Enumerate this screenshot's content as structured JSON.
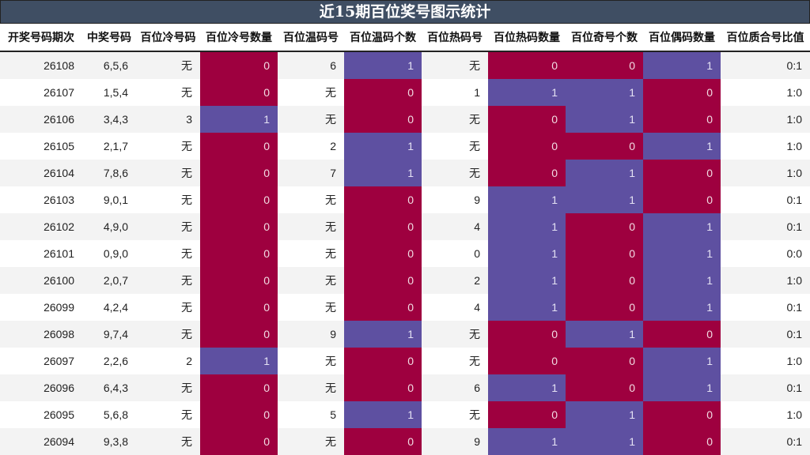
{
  "title": "近15期百位奖号图示统计",
  "colors": {
    "zero": "#9e003f",
    "one": "#5e50a1",
    "header": "#3f4e63"
  },
  "columns": [
    "开奖号码期次",
    "中奖号码",
    "百位冷号码",
    "百位冷号数量",
    "百位温码号",
    "百位温码个数",
    "百位热码号",
    "百位热码数量",
    "百位奇号个数",
    "百位偶码数量",
    "百位质合号比值"
  ],
  "rows": [
    [
      "26108",
      "6,5,6",
      "无",
      "0",
      "6",
      "1",
      "无",
      "0",
      "0",
      "1",
      "0:1"
    ],
    [
      "26107",
      "1,5,4",
      "无",
      "0",
      "无",
      "0",
      "1",
      "1",
      "1",
      "0",
      "1:0"
    ],
    [
      "26106",
      "3,4,3",
      "3",
      "1",
      "无",
      "0",
      "无",
      "0",
      "1",
      "0",
      "1:0"
    ],
    [
      "26105",
      "2,1,7",
      "无",
      "0",
      "2",
      "1",
      "无",
      "0",
      "0",
      "1",
      "1:0"
    ],
    [
      "26104",
      "7,8,6",
      "无",
      "0",
      "7",
      "1",
      "无",
      "0",
      "1",
      "0",
      "1:0"
    ],
    [
      "26103",
      "9,0,1",
      "无",
      "0",
      "无",
      "0",
      "9",
      "1",
      "1",
      "0",
      "0:1"
    ],
    [
      "26102",
      "4,9,0",
      "无",
      "0",
      "无",
      "0",
      "4",
      "1",
      "0",
      "1",
      "0:1"
    ],
    [
      "26101",
      "0,9,0",
      "无",
      "0",
      "无",
      "0",
      "0",
      "1",
      "0",
      "1",
      "0:0"
    ],
    [
      "26100",
      "2,0,7",
      "无",
      "0",
      "无",
      "0",
      "2",
      "1",
      "0",
      "1",
      "1:0"
    ],
    [
      "26099",
      "4,2,4",
      "无",
      "0",
      "无",
      "0",
      "4",
      "1",
      "0",
      "1",
      "0:1"
    ],
    [
      "26098",
      "9,7,4",
      "无",
      "0",
      "9",
      "1",
      "无",
      "0",
      "1",
      "0",
      "0:1"
    ],
    [
      "26097",
      "2,2,6",
      "2",
      "1",
      "无",
      "0",
      "无",
      "0",
      "0",
      "1",
      "1:0"
    ],
    [
      "26096",
      "6,4,3",
      "无",
      "0",
      "无",
      "0",
      "6",
      "1",
      "0",
      "1",
      "0:1"
    ],
    [
      "26095",
      "5,6,8",
      "无",
      "0",
      "5",
      "1",
      "无",
      "0",
      "1",
      "0",
      "1:0"
    ],
    [
      "26094",
      "9,3,8",
      "无",
      "0",
      "无",
      "0",
      "9",
      "1",
      "1",
      "0",
      "0:1"
    ]
  ],
  "chart_data": {
    "type": "table",
    "title": "近15期百位奖号图示统计",
    "columns": [
      "开奖号码期次",
      "中奖号码",
      "百位冷号码",
      "百位冷号数量",
      "百位温码号",
      "百位温码个数",
      "百位热码号",
      "百位热码数量",
      "百位奇号个数",
      "百位偶码数量",
      "百位质合号比值"
    ],
    "categories": [
      "26108",
      "26107",
      "26106",
      "26105",
      "26104",
      "26103",
      "26102",
      "26101",
      "26100",
      "26099",
      "26098",
      "26097",
      "26096",
      "26095",
      "26094"
    ],
    "series": [
      {
        "name": "百位冷号数量",
        "values": [
          0,
          0,
          1,
          0,
          0,
          0,
          0,
          0,
          0,
          0,
          0,
          1,
          0,
          0,
          0
        ]
      },
      {
        "name": "百位温码个数",
        "values": [
          1,
          0,
          0,
          1,
          1,
          0,
          0,
          0,
          0,
          0,
          1,
          0,
          0,
          1,
          0
        ]
      },
      {
        "name": "百位热码数量",
        "values": [
          0,
          1,
          0,
          0,
          0,
          1,
          1,
          1,
          1,
          1,
          0,
          0,
          1,
          0,
          1
        ]
      },
      {
        "name": "百位奇号个数",
        "values": [
          0,
          1,
          1,
          0,
          1,
          1,
          0,
          0,
          0,
          0,
          1,
          0,
          0,
          1,
          1
        ]
      },
      {
        "name": "百位偶码数量",
        "values": [
          1,
          0,
          0,
          1,
          0,
          0,
          1,
          1,
          1,
          1,
          0,
          1,
          1,
          0,
          0
        ]
      }
    ],
    "legend": {
      "0": "#9e003f",
      "1": "#5e50a1"
    }
  }
}
